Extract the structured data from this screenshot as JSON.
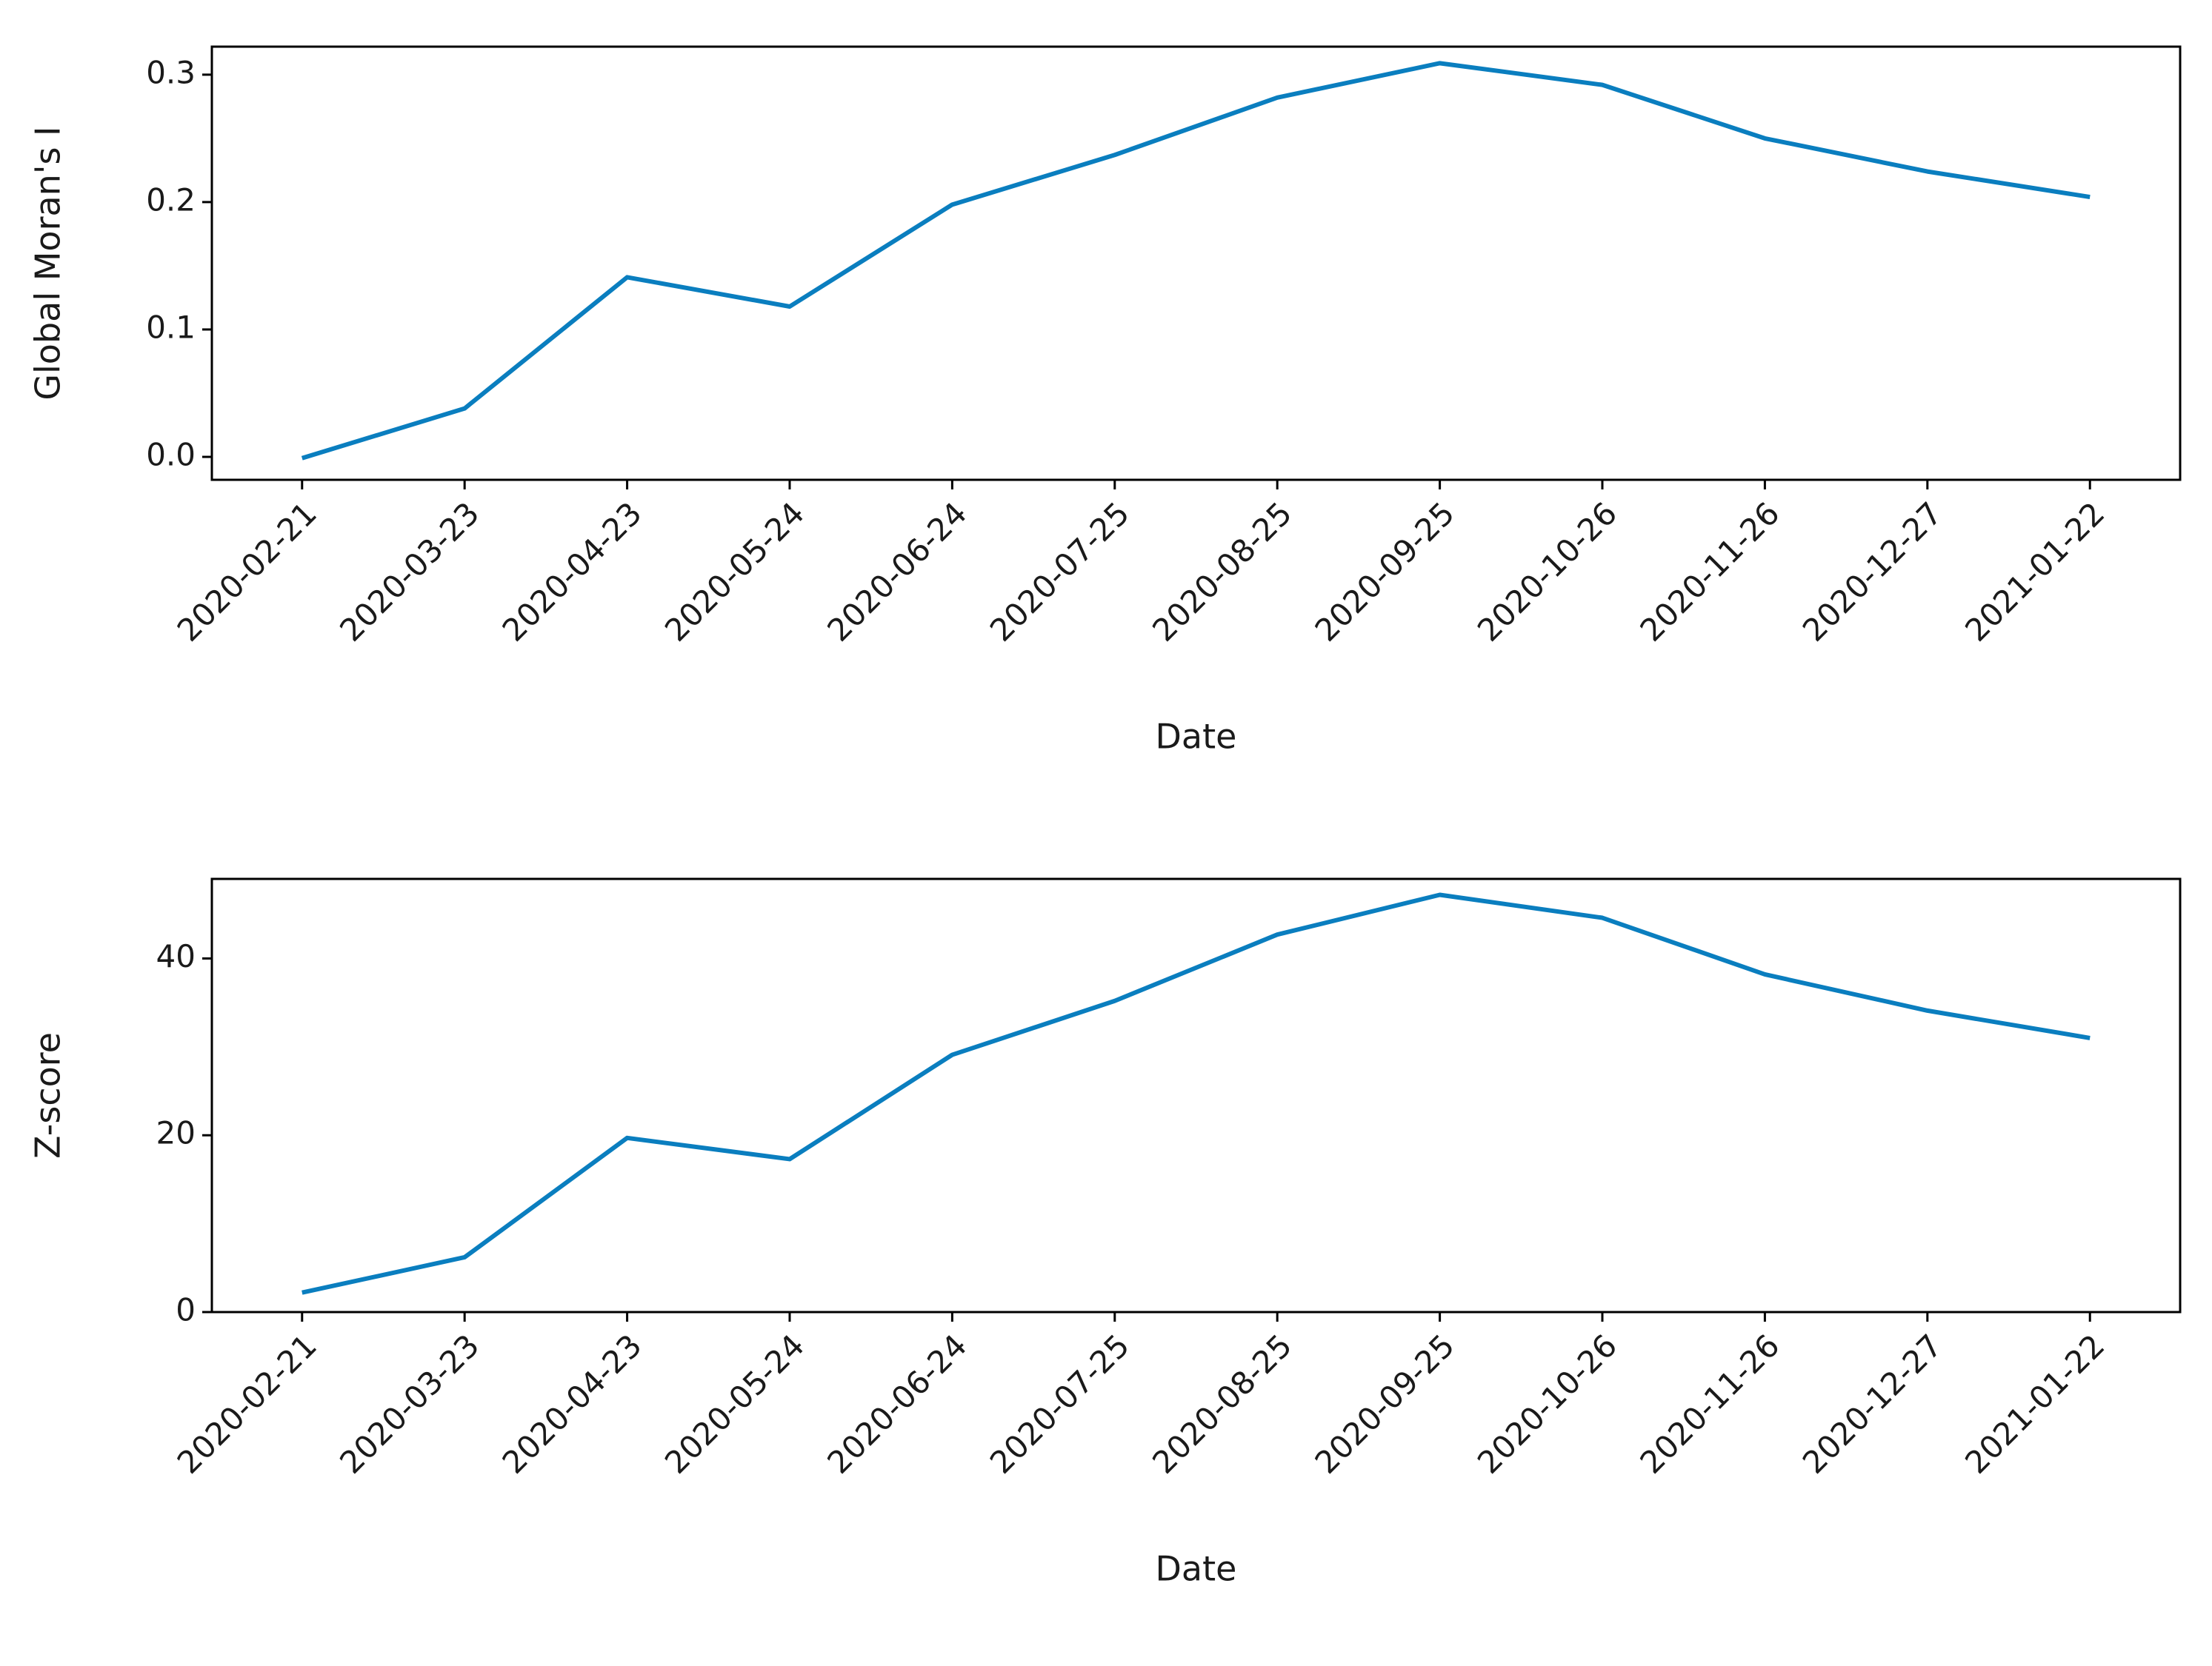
{
  "chart_data": [
    {
      "type": "line",
      "x_label": "Date",
      "y_label": "Global Moran's I",
      "categories": [
        "2020-02-21",
        "2020-03-23",
        "2020-04-23",
        "2020-05-24",
        "2020-06-24",
        "2020-07-25",
        "2020-08-25",
        "2020-09-25",
        "2020-10-26",
        "2020-11-26",
        "2020-12-27",
        "2021-01-22"
      ],
      "values": [
        -0.001,
        0.038,
        0.141,
        0.118,
        0.198,
        0.237,
        0.282,
        0.309,
        0.292,
        0.25,
        0.224,
        0.204
      ],
      "color": "#0a7ebf",
      "ylim": [
        -0.018,
        0.322
      ],
      "yticks": [
        {
          "value": 0,
          "label": "0.0"
        },
        0.1,
        0.2,
        0.3
      ]
    },
    {
      "type": "line",
      "x_label": "Date",
      "y_label": "Z-score",
      "categories": [
        "2020-02-21",
        "2020-03-23",
        "2020-04-23",
        "2020-05-24",
        "2020-06-24",
        "2020-07-25",
        "2020-08-25",
        "2020-09-25",
        "2020-10-26",
        "2020-11-26",
        "2020-12-27",
        "2021-01-22"
      ],
      "values": [
        2.2,
        6.2,
        19.7,
        17.3,
        29.1,
        35.2,
        42.7,
        47.2,
        44.6,
        38.2,
        34.1,
        31.0
      ],
      "color": "#0a7ebf",
      "ylim": [
        0,
        49
      ],
      "yticks": [
        0,
        20,
        40
      ]
    }
  ]
}
